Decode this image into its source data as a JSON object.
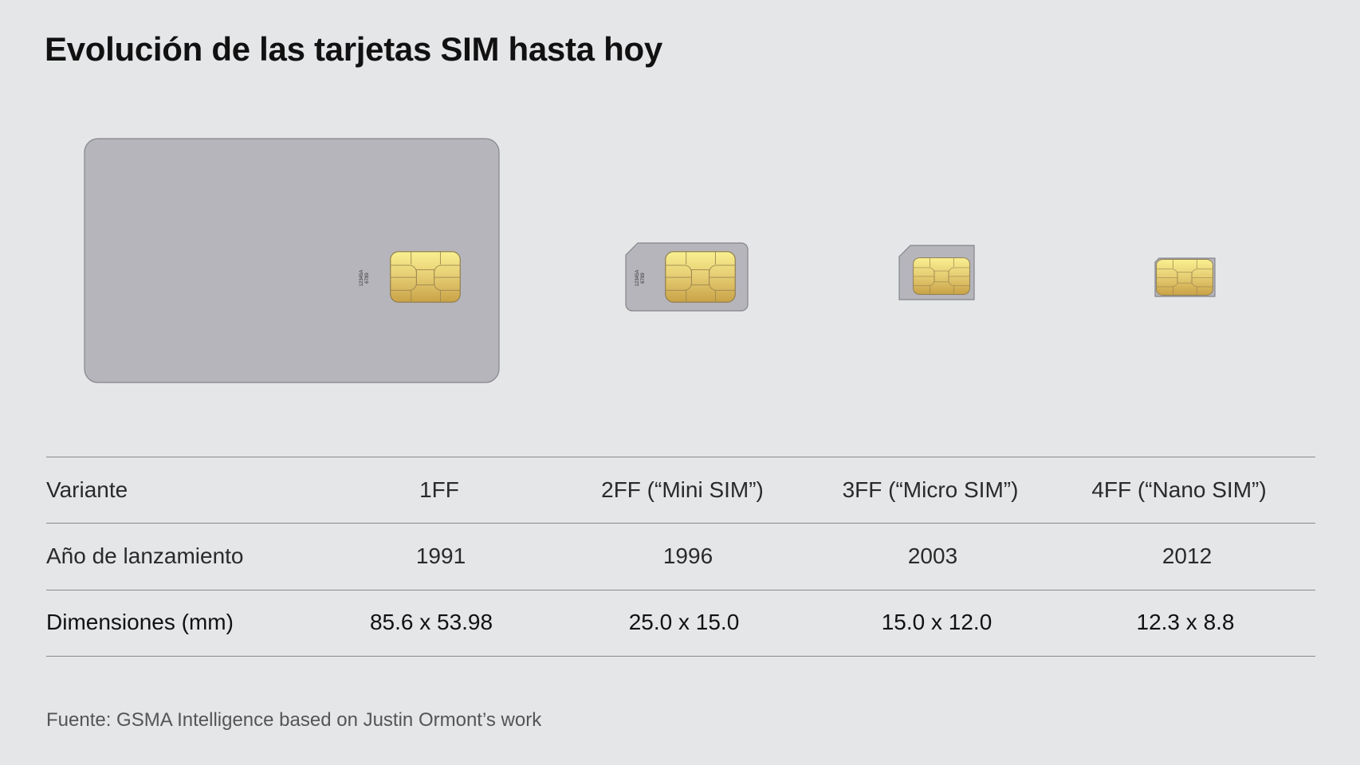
{
  "title": "Evolución de las tarjetas SIM hasta hoy",
  "cards": [
    {
      "variant": "1FF",
      "serial_line1": "12345A",
      "serial_line2": "6789"
    },
    {
      "variant": "2FF",
      "serial_line1": "12345A",
      "serial_line2": "6789"
    },
    {
      "variant": "3FF"
    },
    {
      "variant": "4FF"
    }
  ],
  "colors": {
    "background": "#e5e6e8",
    "card": "#b6b5bb",
    "chip_light": "#f7ec8c",
    "chip_dark": "#c9a247"
  },
  "table": {
    "rows": [
      {
        "label": "Variante",
        "values": [
          "1FF",
          "2FF  (“Mini SIM”)",
          "3FF  (“Micro SIM”)",
          "4FF  (“Nano SIM”)"
        ]
      },
      {
        "label": "Año de lanzamiento",
        "values": [
          "1991",
          "1996",
          "2003",
          "2012"
        ]
      },
      {
        "label": "Dimensiones (mm)",
        "values": [
          "85.6 x 53.98",
          "25.0 x 15.0",
          "15.0 x 12.0",
          "12.3 x 8.8"
        ]
      }
    ]
  },
  "footer": "Fuente:  GSMA Intelligence based on Justin Ormont’s work"
}
